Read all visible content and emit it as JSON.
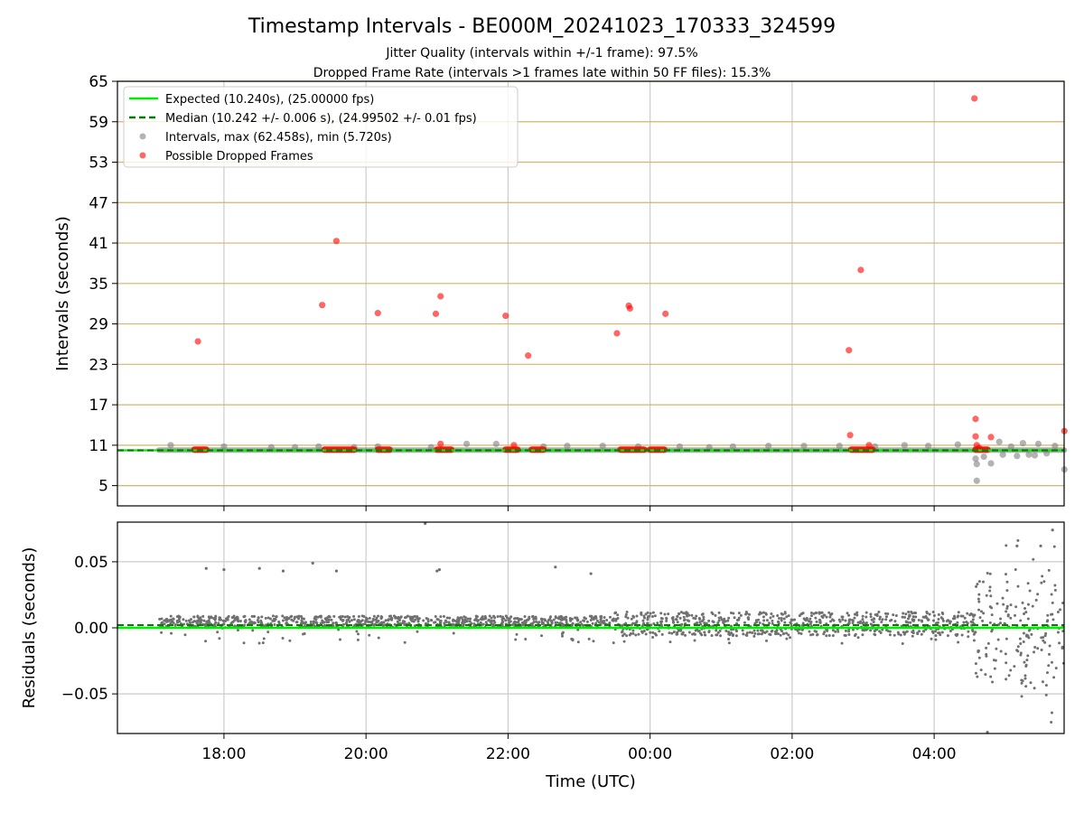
{
  "title": "Timestamp Intervals - BE000M_20241023_170333_324599",
  "subtitle_1": "Jitter Quality (intervals within +/-1 frame): 97.5%",
  "subtitle_2": "Dropped Frame Rate (intervals >1 frames late within 50 FF files): 15.3%",
  "colors": {
    "expected": "#00ee00",
    "median": "#008000",
    "intervals": "#808080",
    "dropped": "#ff0000",
    "hline": "#d4b56a",
    "grid": "#cccccc",
    "residual_points": "#707070"
  },
  "chart_data": [
    {
      "type": "scatter",
      "title": "",
      "xlabel": "",
      "ylabel": "Intervals (seconds)",
      "x_unit": "hours since 16:30 UTC on the plot's first day (16:30 to 05:50 next day)",
      "xlim": [
        0,
        13.33
      ],
      "ylim": [
        2,
        65
      ],
      "yticks": [
        5,
        11,
        17,
        23,
        29,
        35,
        41,
        47,
        53,
        59,
        65
      ],
      "horizontal_lines_at_yticks": true,
      "grid": true,
      "legend_position": "top-left",
      "legend": [
        "Expected (10.240s), (25.00000 fps)",
        "Median (10.242 +/- 0.006 s), (24.99502 +/- 0.01 fps)",
        "Intervals, max (62.458s), min (5.720s)",
        "Possible Dropped Frames"
      ],
      "expected_value": 10.24,
      "median_value": 10.242,
      "intervals_range": [
        10.24,
        10.33
      ],
      "interval_time_range": [
        "17:05",
        "05:50"
      ],
      "interval_outliers": [
        {
          "x": "17:15",
          "y": 11.0
        },
        {
          "x": "18:00",
          "y": 10.8
        },
        {
          "x": "18:40",
          "y": 10.7
        },
        {
          "x": "19:00",
          "y": 10.7
        },
        {
          "x": "19:20",
          "y": 10.8
        },
        {
          "x": "19:50",
          "y": 10.7
        },
        {
          "x": "20:10",
          "y": 10.8
        },
        {
          "x": "20:55",
          "y": 10.7
        },
        {
          "x": "21:25",
          "y": 11.2
        },
        {
          "x": "21:50",
          "y": 11.2
        },
        {
          "x": "22:30",
          "y": 10.8
        },
        {
          "x": "22:50",
          "y": 10.9
        },
        {
          "x": "23:20",
          "y": 10.9
        },
        {
          "x": "23:50",
          "y": 10.8
        },
        {
          "x": "00:25",
          "y": 10.8
        },
        {
          "x": "00:50",
          "y": 10.7
        },
        {
          "x": "01:10",
          "y": 10.8
        },
        {
          "x": "01:40",
          "y": 10.9
        },
        {
          "x": "02:10",
          "y": 10.9
        },
        {
          "x": "02:40",
          "y": 10.9
        },
        {
          "x": "03:10",
          "y": 10.8
        },
        {
          "x": "03:35",
          "y": 11.0
        },
        {
          "x": "03:55",
          "y": 10.9
        },
        {
          "x": "04:20",
          "y": 11.1
        },
        {
          "x": "04:35",
          "y": 9.0
        },
        {
          "x": "04:36",
          "y": 8.2
        },
        {
          "x": "04:36",
          "y": 5.72
        },
        {
          "x": "04:42",
          "y": 9.3
        },
        {
          "x": "04:48",
          "y": 8.3
        },
        {
          "x": "04:55",
          "y": 11.5
        },
        {
          "x": "04:58",
          "y": 9.6
        },
        {
          "x": "05:05",
          "y": 10.8
        },
        {
          "x": "05:10",
          "y": 9.4
        },
        {
          "x": "05:15",
          "y": 11.3
        },
        {
          "x": "05:20",
          "y": 9.6
        },
        {
          "x": "05:25",
          "y": 9.5
        },
        {
          "x": "05:28",
          "y": 11.2
        },
        {
          "x": "05:35",
          "y": 9.8
        },
        {
          "x": "05:42",
          "y": 10.9
        },
        {
          "x": "05:50",
          "y": 7.4
        }
      ],
      "dropped_frame_clusters": [
        {
          "from": "17:35",
          "to": "17:45",
          "y": 10.35
        },
        {
          "from": "19:25",
          "to": "19:50",
          "y": 10.35
        },
        {
          "from": "20:10",
          "to": "20:20",
          "y": 10.35
        },
        {
          "from": "21:00",
          "to": "21:12",
          "y": 10.35
        },
        {
          "from": "21:58",
          "to": "22:08",
          "y": 10.35
        },
        {
          "from": "22:20",
          "to": "22:30",
          "y": 10.35
        },
        {
          "from": "23:35",
          "to": "23:55",
          "y": 10.35
        },
        {
          "from": "00:00",
          "to": "00:12",
          "y": 10.35
        },
        {
          "from": "02:50",
          "to": "03:08",
          "y": 10.35
        },
        {
          "from": "04:35",
          "to": "04:45",
          "y": 10.35
        }
      ],
      "dropped_frames": [
        {
          "x": "17:38",
          "y": 26.4
        },
        {
          "x": "19:23",
          "y": 31.8
        },
        {
          "x": "19:35",
          "y": 41.3
        },
        {
          "x": "20:10",
          "y": 30.6
        },
        {
          "x": "20:59",
          "y": 30.5
        },
        {
          "x": "21:03",
          "y": 33.1
        },
        {
          "x": "21:03",
          "y": 11.2
        },
        {
          "x": "21:58",
          "y": 30.2
        },
        {
          "x": "22:05",
          "y": 11.0
        },
        {
          "x": "22:17",
          "y": 24.3
        },
        {
          "x": "23:32",
          "y": 27.6
        },
        {
          "x": "23:42",
          "y": 31.7
        },
        {
          "x": "23:43",
          "y": 31.3
        },
        {
          "x": "00:13",
          "y": 30.5
        },
        {
          "x": "02:48",
          "y": 25.1
        },
        {
          "x": "02:49",
          "y": 12.5
        },
        {
          "x": "02:58",
          "y": 37.0
        },
        {
          "x": "03:05",
          "y": 11.0
        },
        {
          "x": "04:34",
          "y": 62.458
        },
        {
          "x": "04:35",
          "y": 14.9
        },
        {
          "x": "04:35",
          "y": 12.3
        },
        {
          "x": "04:36",
          "y": 11.0
        },
        {
          "x": "04:38",
          "y": 10.6
        },
        {
          "x": "04:48",
          "y": 12.2
        },
        {
          "x": "05:50",
          "y": 13.1
        }
      ]
    },
    {
      "type": "scatter",
      "title": "",
      "xlabel": "Time (UTC)",
      "ylabel": "Residuals (seconds)",
      "x_unit": "hours since 16:30 UTC on the plot's first day (16:30 to 05:50 next day)",
      "xlim": [
        0,
        13.33
      ],
      "ylim": [
        -0.08,
        0.08
      ],
      "yticks": [
        0.05,
        0.0,
        -0.05
      ],
      "ytick_labels": [
        "0.05",
        "0.00",
        "−0.05"
      ],
      "xticks": [
        "18:00",
        "20:00",
        "22:00",
        "00:00",
        "02:00",
        "04:00"
      ],
      "grid": true,
      "expected_residual": 0.0,
      "median_residual": 0.002,
      "residual_bands": [
        {
          "from": "17:05",
          "to": "23:30",
          "typical_low": 0.0,
          "typical_high": 0.009
        },
        {
          "from": "23:30",
          "to": "04:35",
          "typical_low": -0.006,
          "typical_high": 0.012
        },
        {
          "from": "04:35",
          "to": "05:50",
          "typical_low": -0.05,
          "typical_high": 0.05
        }
      ],
      "residual_outliers": [
        {
          "x": "17:45",
          "y": 0.045
        },
        {
          "x": "18:00",
          "y": 0.044
        },
        {
          "x": "18:30",
          "y": 0.045
        },
        {
          "x": "18:50",
          "y": 0.043
        },
        {
          "x": "19:15",
          "y": 0.049
        },
        {
          "x": "19:35",
          "y": 0.043
        },
        {
          "x": "20:50",
          "y": 0.079
        },
        {
          "x": "21:00",
          "y": 0.043
        },
        {
          "x": "21:02",
          "y": 0.044
        },
        {
          "x": "22:40",
          "y": 0.046
        },
        {
          "x": "23:10",
          "y": 0.041
        },
        {
          "x": "04:45",
          "y": -0.079
        },
        {
          "x": "05:10",
          "y": 0.062
        },
        {
          "x": "05:40",
          "y": 0.074
        },
        {
          "x": "05:30",
          "y": 0.062
        }
      ]
    }
  ]
}
